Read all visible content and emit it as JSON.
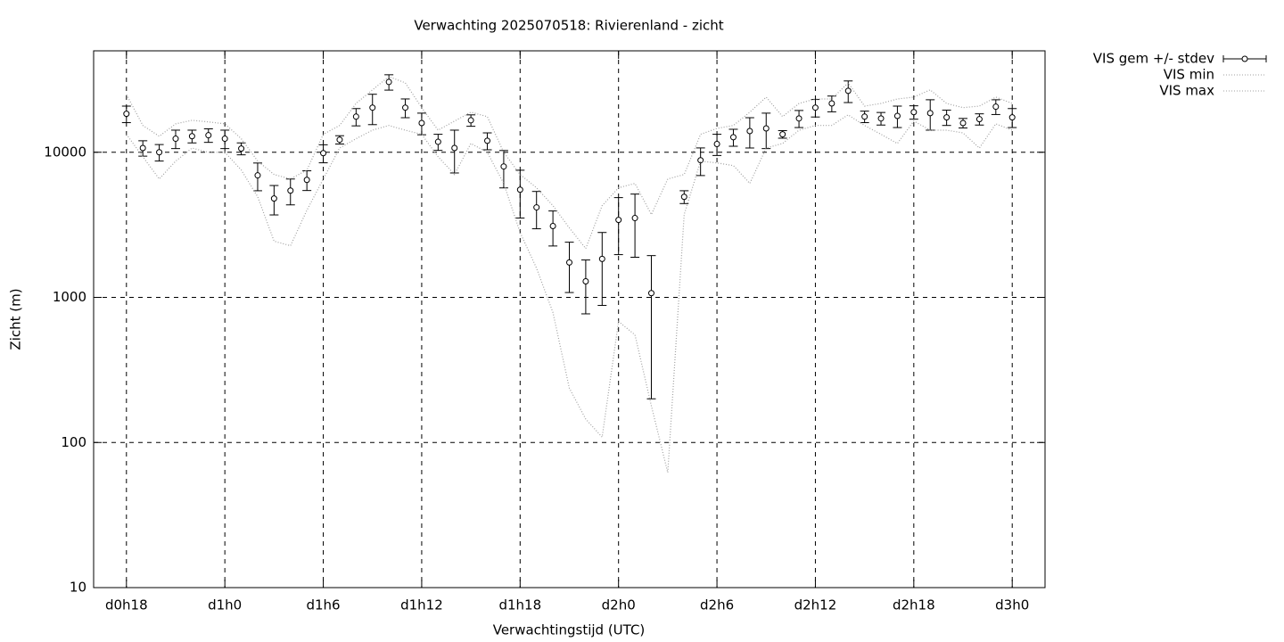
{
  "chart_data": {
    "type": "line",
    "title": "Verwachting 2025070518: Rivierenland - zicht",
    "xlabel": "Verwachtingstijd (UTC)",
    "ylabel": "Zicht (m)",
    "x": [
      18,
      19,
      20,
      21,
      22,
      23,
      24,
      25,
      26,
      27,
      28,
      29,
      30,
      31,
      32,
      33,
      34,
      35,
      36,
      37,
      38,
      39,
      40,
      41,
      42,
      43,
      44,
      45,
      46,
      47,
      48,
      49,
      50,
      51,
      52,
      53,
      54,
      55,
      56,
      57,
      58,
      59,
      60,
      61,
      62,
      63,
      64,
      65,
      66,
      67,
      68,
      69,
      70,
      71,
      72
    ],
    "xlim": [
      16,
      74
    ],
    "xticks": [
      {
        "value": 18,
        "label": "d0h18"
      },
      {
        "value": 24,
        "label": "d1h0"
      },
      {
        "value": 30,
        "label": "d1h6"
      },
      {
        "value": 36,
        "label": "d1h12"
      },
      {
        "value": 42,
        "label": "d1h18"
      },
      {
        "value": 48,
        "label": "d2h0"
      },
      {
        "value": 54,
        "label": "d2h6"
      },
      {
        "value": 60,
        "label": "d2h12"
      },
      {
        "value": 66,
        "label": "d2h18"
      },
      {
        "value": 72,
        "label": "d3h0"
      }
    ],
    "ylim": [
      10,
      50000
    ],
    "yticks": [
      10,
      100,
      1000,
      10000
    ],
    "log_y": true,
    "grid": true,
    "legend": "outside-top-right",
    "series": [
      {
        "name": "VIS gem +/- stdev",
        "color": "#000000",
        "style": "errorbars",
        "values": [
          18400,
          10700,
          10000,
          12400,
          12900,
          13100,
          12400,
          10600,
          6930,
          4800,
          5440,
          6450,
          9860,
          12200,
          17600,
          20300,
          30500,
          20300,
          15900,
          11800,
          10700,
          16600,
          12000,
          7980,
          5520,
          4170,
          3100,
          1740,
          1290,
          1840,
          3420,
          3520,
          1070,
          null,
          4930,
          8810,
          11400,
          12700,
          14000,
          14600,
          13300,
          17100,
          20300,
          21700,
          26500,
          17600,
          17100,
          17800,
          18900,
          18600,
          17400,
          15900,
          16900,
          20600,
          17400
        ],
        "errors": [
          2400,
          1300,
          1300,
          1800,
          1300,
          1400,
          1800,
          1000,
          1500,
          1100,
          1100,
          1000,
          1400,
          800,
          2400,
          4800,
          3700,
          3000,
          2700,
          1500,
          3500,
          1500,
          1600,
          2300,
          2000,
          1200,
          840,
          660,
          520,
          960,
          1450,
          1630,
          870,
          null,
          500,
          1900,
          1900,
          1700,
          3300,
          4000,
          800,
          2300,
          2800,
          2700,
          4500,
          1600,
          1700,
          3000,
          2000,
          4400,
          2100,
          1200,
          1500,
          2400,
          2600
        ]
      },
      {
        "name": "VIS min",
        "color": "#a0a0a0",
        "style": "dotted",
        "values": [
          13300,
          9310,
          6550,
          8690,
          10700,
          10000,
          10000,
          7540,
          4930,
          2440,
          2270,
          3990,
          6550,
          10700,
          12400,
          14200,
          15300,
          14200,
          13300,
          9310,
          7030,
          11500,
          10000,
          6100,
          2800,
          1590,
          787,
          237,
          145,
          109,
          683,
          552,
          179,
          62,
          3720,
          8690,
          8440,
          8090,
          6100,
          10700,
          11500,
          14200,
          15300,
          15300,
          18100,
          15300,
          13300,
          11500,
          16400,
          14200,
          14200,
          13600,
          10700,
          15700,
          14200
        ]
      },
      {
        "name": "VIS max",
        "color": "#a0a0a0",
        "style": "dotted",
        "values": [
          25000,
          15300,
          12900,
          15700,
          16600,
          16200,
          15700,
          12400,
          8690,
          7030,
          6550,
          7540,
          13300,
          15300,
          21700,
          26900,
          33200,
          30100,
          20300,
          14200,
          16400,
          18900,
          17600,
          10000,
          7030,
          5690,
          4290,
          3010,
          2170,
          4290,
          5690,
          6100,
          3720,
          6550,
          7030,
          13300,
          14600,
          15300,
          18900,
          24000,
          17600,
          21700,
          23300,
          23300,
          30100,
          20800,
          21700,
          23300,
          24000,
          26900,
          21700,
          20300,
          20800,
          24000,
          21700
        ]
      }
    ]
  }
}
